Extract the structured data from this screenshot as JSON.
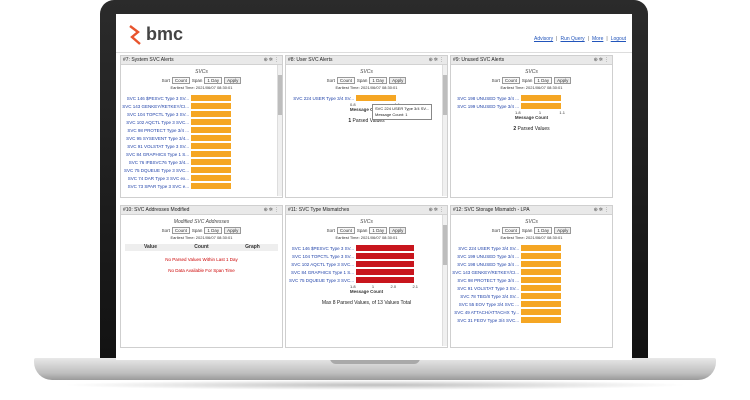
{
  "header": {
    "logo_text": "bmc",
    "links": [
      "Advisory",
      "Run Query",
      "More",
      "Logout"
    ]
  },
  "controls": {
    "sort_label": "Sort",
    "sort_value": "Count",
    "span_label": "Span",
    "span_value": "1 Day",
    "apply": "Apply"
  },
  "panels": [
    {
      "title": "#7: System SVC Alerts",
      "subtitle": "SVCs",
      "earliest": "Earliest Time: 2021/06/07 08:30:01",
      "rows": [
        {
          "label": "SVC 146 $PESVC Type 3 SV...",
          "value": 1
        },
        {
          "label": "SVC 143 GENKEY/RETKEY/CI...",
          "value": 1
        },
        {
          "label": "SVC 104 TOPCTL Type 3 SV...",
          "value": 1
        },
        {
          "label": "SVC 102 AQCTL Type 3 SVC...",
          "value": 1
        },
        {
          "label": "SVC 98 PROTECT Type 3/4 ...",
          "value": 1
        },
        {
          "label": "SVC 95 SYSEVENT Type 3/4...",
          "value": 1
        },
        {
          "label": "SVC 91 VOLSTAT Type 3 SV...",
          "value": 1
        },
        {
          "label": "SVC 84 GRAPHICS Type 1 S...",
          "value": 1
        },
        {
          "label": "SVC 76 IFBSVC76 Type 3/4...",
          "value": 1
        },
        {
          "label": "SVC 75 DQUEUE Type 3 SVC...",
          "value": 1
        },
        {
          "label": "SVC 74 DAR Type 3 SVC ex...",
          "value": 1
        },
        {
          "label": "SVC 73 SPAR Type 3 SVC e...",
          "value": 1
        }
      ],
      "axis_ticks": [],
      "footer": ""
    },
    {
      "title": "#8: User SVC Alerts",
      "subtitle": "SVCs",
      "earliest": "Earliest Time: 2021/06/07 08:30:01",
      "rows": [
        {
          "label": "SVC 224 USER Type 3/4 SV...",
          "value": 1
        }
      ],
      "tooltip": [
        "SVC 224 USER Type 3/4 SV...",
        "Message Count: 1"
      ],
      "axis_ticks": [
        "0.8",
        "1.1"
      ],
      "axis_label": "Message Count",
      "footer_count": "1",
      "footer": "Parsed Values"
    },
    {
      "title": "#9: Unused SVC Alerts",
      "subtitle": "SVCs",
      "earliest": "Earliest Time: 2021/06/07 08:30:01",
      "rows": [
        {
          "label": "SVC 198 UNUSED Type 3/4 ...",
          "value": 1
        },
        {
          "label": "SVC 199 UNUSED Type 3/4 ...",
          "value": 1
        }
      ],
      "axis_ticks": [
        "1.8",
        "1",
        "1.1"
      ],
      "axis_label": "Message Count",
      "footer_count": "2",
      "footer": "Parsed Values"
    },
    {
      "title": "#10: SVC Addresses Modified",
      "subtitle": "Modified SVC Addresses",
      "earliest": "Earliest Time: 2021/06/07 08:30:01",
      "table_headers": [
        "Value",
        "Count",
        "Graph"
      ],
      "no_data_1": "No Parsed Values Within Last 1 Day",
      "no_data_2": "No Data Available For Span Time"
    },
    {
      "title": "#11: SVC Type Mismatches",
      "subtitle": "SVCs",
      "earliest": "Earliest Time: 2021/06/07 08:30:01",
      "rows": [
        {
          "label": "SVC 146 $PESVC Type 3 SV...",
          "value": 2
        },
        {
          "label": "SVC 104 TOPCTL Type 3 SV...",
          "value": 2
        },
        {
          "label": "SVC 102 AQCTL Type 3 SVC...",
          "value": 2
        },
        {
          "label": "SVC 84 GRAPHICS Type 1 S...",
          "value": 2
        },
        {
          "label": "SVC 75 DQUEUE Type 3 SVC...",
          "value": 2
        }
      ],
      "axis_ticks": [
        "1.8",
        "1",
        "2.0",
        "2.1"
      ],
      "axis_label": "Message Count",
      "footer": "Max 8 Parsed Values, of 13 Values Total"
    },
    {
      "title": "#12: SVC Storage Mismatch - LPA",
      "subtitle": "SVCs",
      "earliest": "Earliest Time: 2021/06/07 08:30:01",
      "rows": [
        {
          "label": "SVC 224 USER Type 3/4 SV...",
          "value": 1
        },
        {
          "label": "SVC 199 UNUSED Type 3/4 ...",
          "value": 1
        },
        {
          "label": "SVC 198 UNUSED Type 3/4 ...",
          "value": 1
        },
        {
          "label": "SVC 143 GENKEY/RETKEY/CI...",
          "value": 1
        },
        {
          "label": "SVC 98 PROTECT Type 3/4 ...",
          "value": 1
        },
        {
          "label": "SVC 91 VOLSTAT Type 3 SV...",
          "value": 1
        },
        {
          "label": "SVC 78 TBG/8 Type 3/4 SV...",
          "value": 1
        },
        {
          "label": "SVC 55 EOV Type 3/4 SVC ...",
          "value": 1
        },
        {
          "label": "SVC 49 ATTACH/ATTACHX Ty...",
          "value": 1
        },
        {
          "label": "SVC 31 FEOV Type 3/4 SVC...",
          "value": 1
        }
      ],
      "axis_ticks": [],
      "footer": ""
    }
  ],
  "colors": {
    "orange_bar": "#f5a623",
    "red_bar": "#c8151d",
    "accent": "#e8542d"
  }
}
